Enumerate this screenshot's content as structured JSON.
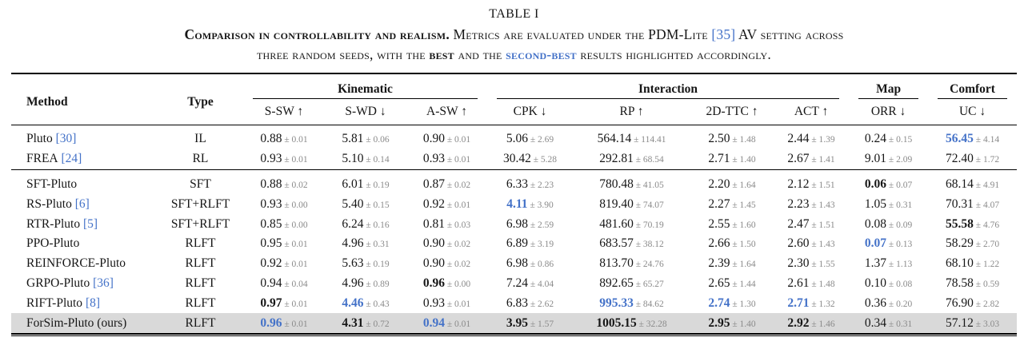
{
  "title": "TABLE I",
  "caption": {
    "lead": "Comparison in controllability and realism.",
    "line1_a": " Metrics are evaluated under the PDM-Lite ",
    "cite": "[35]",
    "line1_b": " AV setting across",
    "line2_a": "three random seeds, with the ",
    "best_word": "best",
    "line2_b": " and the ",
    "second_best_word": "second-best",
    "line2_c": " results highlighted accordingly."
  },
  "colors": {
    "accent_blue": "#4472c8",
    "std_gray": "#8a8a8a",
    "highlight_row_bg": "#d9d9d9"
  },
  "table": {
    "headers": {
      "method": "Method",
      "type": "Type",
      "groups": [
        {
          "label": "Kinematic",
          "cols": [
            "S-SW ↑",
            "S-WD ↓",
            "A-SW ↑"
          ]
        },
        {
          "label": "Interaction",
          "cols": [
            "CPK ↓",
            "RP ↑",
            "2D-TTC ↑",
            "ACT ↑"
          ]
        },
        {
          "label": "Map",
          "cols": [
            "ORR ↓"
          ]
        },
        {
          "label": "Comfort",
          "cols": [
            "UC ↓"
          ]
        }
      ]
    },
    "rows": [
      {
        "method": "Pluto",
        "cite": "[30]",
        "type": "IL",
        "section_end": false,
        "highlight_row": false,
        "cells": [
          {
            "v": "0.88",
            "std": "0.01",
            "hl": "none"
          },
          {
            "v": "5.81",
            "std": "0.06",
            "hl": "none"
          },
          {
            "v": "0.90",
            "std": "0.01",
            "hl": "none"
          },
          {
            "v": "5.06",
            "std": "2.69",
            "hl": "none"
          },
          {
            "v": "564.14",
            "std": "114.41",
            "hl": "none"
          },
          {
            "v": "2.50",
            "std": "1.48",
            "hl": "none"
          },
          {
            "v": "2.44",
            "std": "1.39",
            "hl": "none"
          },
          {
            "v": "0.24",
            "std": "0.15",
            "hl": "none"
          },
          {
            "v": "56.45",
            "std": "4.14",
            "hl": "second"
          }
        ]
      },
      {
        "method": "FREA",
        "cite": "[24]",
        "type": "RL",
        "section_end": true,
        "highlight_row": false,
        "cells": [
          {
            "v": "0.93",
            "std": "0.01",
            "hl": "none"
          },
          {
            "v": "5.10",
            "std": "0.14",
            "hl": "none"
          },
          {
            "v": "0.93",
            "std": "0.01",
            "hl": "none"
          },
          {
            "v": "30.42",
            "std": "5.28",
            "hl": "none"
          },
          {
            "v": "292.81",
            "std": "68.54",
            "hl": "none"
          },
          {
            "v": "2.71",
            "std": "1.40",
            "hl": "none"
          },
          {
            "v": "2.67",
            "std": "1.41",
            "hl": "none"
          },
          {
            "v": "9.01",
            "std": "2.09",
            "hl": "none"
          },
          {
            "v": "72.40",
            "std": "1.72",
            "hl": "none"
          }
        ]
      },
      {
        "method": "SFT-Pluto",
        "cite": "",
        "type": "SFT",
        "section_end": false,
        "highlight_row": false,
        "cells": [
          {
            "v": "0.88",
            "std": "0.02",
            "hl": "none"
          },
          {
            "v": "6.01",
            "std": "0.19",
            "hl": "none"
          },
          {
            "v": "0.87",
            "std": "0.02",
            "hl": "none"
          },
          {
            "v": "6.33",
            "std": "2.23",
            "hl": "none"
          },
          {
            "v": "780.48",
            "std": "41.05",
            "hl": "none"
          },
          {
            "v": "2.20",
            "std": "1.64",
            "hl": "none"
          },
          {
            "v": "2.12",
            "std": "1.51",
            "hl": "none"
          },
          {
            "v": "0.06",
            "std": "0.07",
            "hl": "best"
          },
          {
            "v": "68.14",
            "std": "4.91",
            "hl": "none"
          }
        ]
      },
      {
        "method": "RS-Pluto",
        "cite": "[6]",
        "type": "SFT+RLFT",
        "section_end": false,
        "highlight_row": false,
        "cells": [
          {
            "v": "0.93",
            "std": "0.00",
            "hl": "none"
          },
          {
            "v": "5.40",
            "std": "0.15",
            "hl": "none"
          },
          {
            "v": "0.92",
            "std": "0.01",
            "hl": "none"
          },
          {
            "v": "4.11",
            "std": "3.90",
            "hl": "second"
          },
          {
            "v": "819.40",
            "std": "74.07",
            "hl": "none"
          },
          {
            "v": "2.27",
            "std": "1.45",
            "hl": "none"
          },
          {
            "v": "2.23",
            "std": "1.43",
            "hl": "none"
          },
          {
            "v": "1.05",
            "std": "0.31",
            "hl": "none"
          },
          {
            "v": "70.31",
            "std": "4.07",
            "hl": "none"
          }
        ]
      },
      {
        "method": "RTR-Pluto",
        "cite": "[5]",
        "type": "SFT+RLFT",
        "section_end": false,
        "highlight_row": false,
        "cells": [
          {
            "v": "0.85",
            "std": "0.00",
            "hl": "none"
          },
          {
            "v": "6.24",
            "std": "0.16",
            "hl": "none"
          },
          {
            "v": "0.81",
            "std": "0.03",
            "hl": "none"
          },
          {
            "v": "6.98",
            "std": "2.59",
            "hl": "none"
          },
          {
            "v": "481.60",
            "std": "70.19",
            "hl": "none"
          },
          {
            "v": "2.55",
            "std": "1.60",
            "hl": "none"
          },
          {
            "v": "2.47",
            "std": "1.51",
            "hl": "none"
          },
          {
            "v": "0.08",
            "std": "0.09",
            "hl": "none"
          },
          {
            "v": "55.58",
            "std": "4.76",
            "hl": "best"
          }
        ]
      },
      {
        "method": "PPO-Pluto",
        "cite": "",
        "type": "RLFT",
        "section_end": false,
        "highlight_row": false,
        "cells": [
          {
            "v": "0.95",
            "std": "0.01",
            "hl": "none"
          },
          {
            "v": "4.96",
            "std": "0.31",
            "hl": "none"
          },
          {
            "v": "0.90",
            "std": "0.02",
            "hl": "none"
          },
          {
            "v": "6.89",
            "std": "3.19",
            "hl": "none"
          },
          {
            "v": "683.57",
            "std": "38.12",
            "hl": "none"
          },
          {
            "v": "2.66",
            "std": "1.50",
            "hl": "none"
          },
          {
            "v": "2.60",
            "std": "1.43",
            "hl": "none"
          },
          {
            "v": "0.07",
            "std": "0.13",
            "hl": "second"
          },
          {
            "v": "58.29",
            "std": "2.70",
            "hl": "none"
          }
        ]
      },
      {
        "method": "REINFORCE-Pluto",
        "cite": "",
        "type": "RLFT",
        "section_end": false,
        "highlight_row": false,
        "cells": [
          {
            "v": "0.92",
            "std": "0.01",
            "hl": "none"
          },
          {
            "v": "5.63",
            "std": "0.19",
            "hl": "none"
          },
          {
            "v": "0.90",
            "std": "0.02",
            "hl": "none"
          },
          {
            "v": "6.98",
            "std": "0.86",
            "hl": "none"
          },
          {
            "v": "813.70",
            "std": "24.76",
            "hl": "none"
          },
          {
            "v": "2.39",
            "std": "1.64",
            "hl": "none"
          },
          {
            "v": "2.30",
            "std": "1.55",
            "hl": "none"
          },
          {
            "v": "1.37",
            "std": "1.13",
            "hl": "none"
          },
          {
            "v": "68.10",
            "std": "1.22",
            "hl": "none"
          }
        ]
      },
      {
        "method": "GRPO-Pluto",
        "cite": "[36]",
        "type": "RLFT",
        "section_end": false,
        "highlight_row": false,
        "cells": [
          {
            "v": "0.94",
            "std": "0.04",
            "hl": "none"
          },
          {
            "v": "4.96",
            "std": "0.89",
            "hl": "none"
          },
          {
            "v": "0.96",
            "std": "0.00",
            "hl": "best"
          },
          {
            "v": "7.24",
            "std": "4.04",
            "hl": "none"
          },
          {
            "v": "892.65",
            "std": "65.27",
            "hl": "none"
          },
          {
            "v": "2.65",
            "std": "1.44",
            "hl": "none"
          },
          {
            "v": "2.61",
            "std": "1.48",
            "hl": "none"
          },
          {
            "v": "0.10",
            "std": "0.08",
            "hl": "none"
          },
          {
            "v": "78.58",
            "std": "0.59",
            "hl": "none"
          }
        ]
      },
      {
        "method": "RIFT-Pluto",
        "cite": "[8]",
        "type": "RLFT",
        "section_end": false,
        "highlight_row": false,
        "cells": [
          {
            "v": "0.97",
            "std": "0.01",
            "hl": "best"
          },
          {
            "v": "4.46",
            "std": "0.43",
            "hl": "second"
          },
          {
            "v": "0.93",
            "std": "0.01",
            "hl": "none"
          },
          {
            "v": "6.83",
            "std": "2.62",
            "hl": "none"
          },
          {
            "v": "995.33",
            "std": "84.62",
            "hl": "second"
          },
          {
            "v": "2.74",
            "std": "1.30",
            "hl": "second"
          },
          {
            "v": "2.71",
            "std": "1.32",
            "hl": "second"
          },
          {
            "v": "0.36",
            "std": "0.20",
            "hl": "none"
          },
          {
            "v": "76.90",
            "std": "2.82",
            "hl": "none"
          }
        ]
      },
      {
        "method": "ForSim-Pluto (ours)",
        "cite": "",
        "type": "RLFT",
        "section_end": false,
        "highlight_row": true,
        "cells": [
          {
            "v": "0.96",
            "std": "0.01",
            "hl": "second"
          },
          {
            "v": "4.31",
            "std": "0.72",
            "hl": "best"
          },
          {
            "v": "0.94",
            "std": "0.01",
            "hl": "second"
          },
          {
            "v": "3.95",
            "std": "1.57",
            "hl": "best"
          },
          {
            "v": "1005.15",
            "std": "32.28",
            "hl": "best"
          },
          {
            "v": "2.95",
            "std": "1.40",
            "hl": "best"
          },
          {
            "v": "2.92",
            "std": "1.46",
            "hl": "best"
          },
          {
            "v": "0.34",
            "std": "0.31",
            "hl": "none"
          },
          {
            "v": "57.12",
            "std": "3.03",
            "hl": "none"
          }
        ]
      }
    ]
  }
}
